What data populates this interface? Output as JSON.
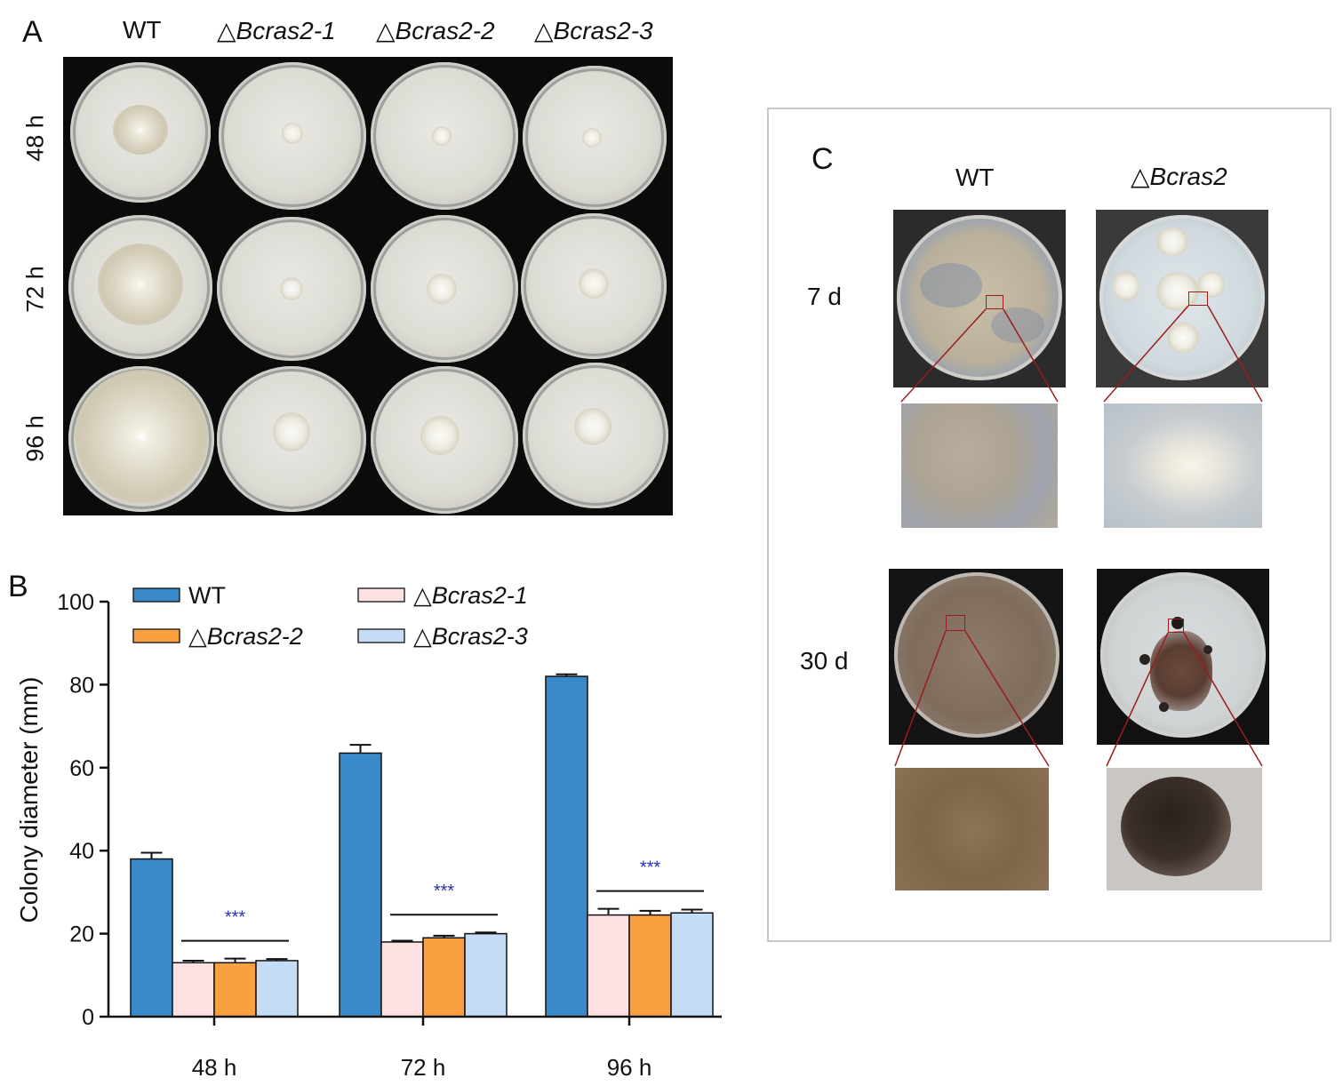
{
  "panel_a": {
    "letter": "A",
    "columns": [
      {
        "prefix": "",
        "name": "WT"
      },
      {
        "prefix": "△",
        "name": "Bcras2-1"
      },
      {
        "prefix": "△",
        "name": "Bcras2-2"
      },
      {
        "prefix": "△",
        "name": "Bcras2-3"
      }
    ],
    "rows": [
      "48 h",
      "72 h",
      "96 h"
    ]
  },
  "panel_b": {
    "letter": "B"
  },
  "panel_c": {
    "letter": "C",
    "columns": [
      {
        "prefix": "",
        "name": "WT"
      },
      {
        "prefix": "△",
        "name": "Bcras2"
      }
    ],
    "rows": [
      "7 d",
      "30 d"
    ]
  },
  "chart_data": {
    "type": "bar",
    "categories": [
      "48 h",
      "72 h",
      "96 h"
    ],
    "series": [
      {
        "name": "WT",
        "values": [
          38,
          63.5,
          82
        ],
        "errors": [
          1.5,
          2,
          0.5
        ],
        "color": "#3a8ac9"
      },
      {
        "name": "△Bcras2-1",
        "values": [
          13,
          18,
          24.5
        ],
        "errors": [
          0.5,
          0.3,
          1.5
        ],
        "color": "#fde0e2"
      },
      {
        "name": "△Bcras2-2",
        "values": [
          13,
          19,
          24.5
        ],
        "errors": [
          1,
          0.5,
          1
        ],
        "color": "#f9a040"
      },
      {
        "name": "△Bcras2-3",
        "values": [
          13.5,
          20,
          25
        ],
        "errors": [
          0.4,
          0.3,
          0.8
        ],
        "color": "#c4dcf5"
      }
    ],
    "xlabel": "",
    "ylabel": "Colony diameter (mm)",
    "ylim": [
      0,
      100
    ],
    "yticks": [
      0,
      20,
      40,
      60,
      80,
      100
    ],
    "significance": [
      "***",
      "***",
      "***"
    ],
    "significance_color": "#2b2fb5",
    "legend": "top"
  }
}
